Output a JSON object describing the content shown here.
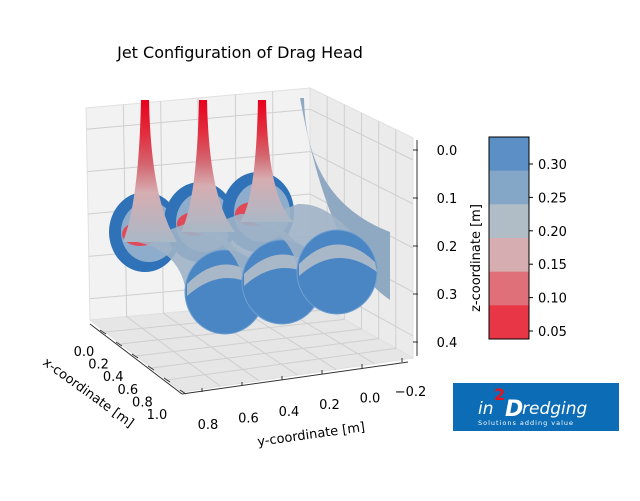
{
  "chart_data": {
    "type": "surface3d",
    "title": "Jet Configuration of Drag Head",
    "xlabel": "x-coordinate [m]",
    "ylabel": "y-coordinate [m]",
    "zlabel": "z-coordinate [m]",
    "x_ticks": [
      "0.0",
      "0.2",
      "0.4",
      "0.6",
      "0.8",
      "1.0"
    ],
    "y_ticks": [
      "0.8",
      "0.6",
      "0.4",
      "0.2",
      "0.0",
      "−0.2"
    ],
    "z_ticks": [
      "0.0",
      "0.1",
      "0.2",
      "0.3",
      "0.4"
    ],
    "xlim": [
      0,
      1.0
    ],
    "ylim": [
      -0.2,
      0.8
    ],
    "zlim": [
      0.4,
      0.0
    ],
    "grid": true,
    "jets": 3,
    "colorbar": {
      "label": "z-coordinate [m]",
      "ticks": [
        "0.30",
        "0.25",
        "0.20",
        "0.15",
        "0.10",
        "0.05"
      ],
      "levels": [
        0.025,
        0.075,
        0.125,
        0.175,
        0.225,
        0.275,
        0.325
      ],
      "colors": [
        "#5b8fc5",
        "#84a7c8",
        "#b0bcc6",
        "#d6adb1",
        "#df707a",
        "#e83646"
      ]
    }
  },
  "logo": {
    "text_main": "in2Dredging",
    "tagline": "Solutions adding value",
    "color": "#0c6cb5"
  }
}
